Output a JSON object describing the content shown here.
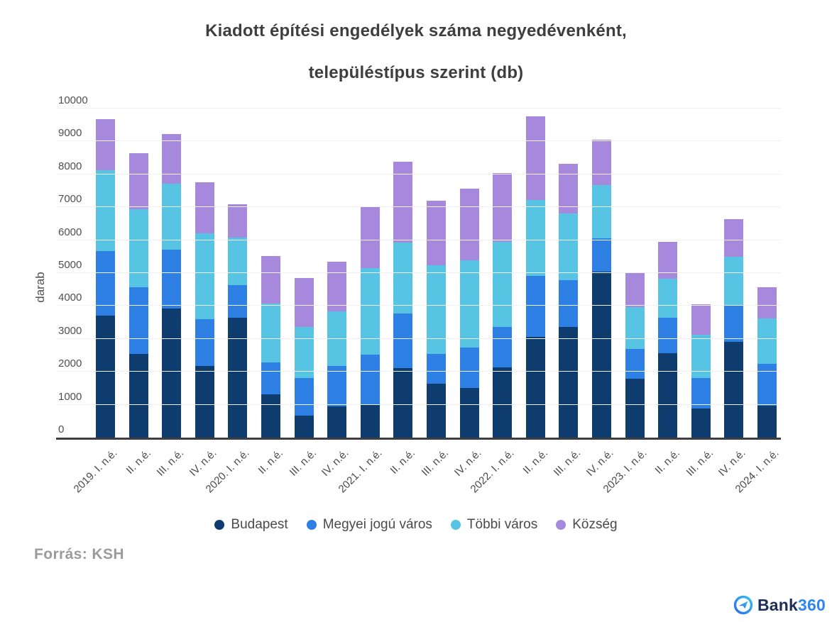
{
  "title": {
    "line1": "Kiadott építési engedélyek száma negyedévenként,",
    "line2": "településtípus szerint (db)"
  },
  "source": "Forrás: KSH",
  "logo": {
    "bank": "Bank",
    "num": "360"
  },
  "chart_data": {
    "type": "bar",
    "stacked": true,
    "title": "Kiadott építési engedélyek száma negyedévenként, településtípus szerint (db)",
    "xlabel": "",
    "ylabel": "darab",
    "ylim": [
      0,
      10000
    ],
    "yticks": [
      0,
      1000,
      2000,
      3000,
      4000,
      5000,
      6000,
      7000,
      8000,
      9000,
      10000
    ],
    "grid": true,
    "legend_position": "bottom",
    "categories": [
      "2019. I. n.é.",
      "II. n.é.",
      "III. n.é.",
      "IV. n.é.",
      "2020. I. n.é.",
      "II. n.é.",
      "III. n.é.",
      "IV. n.é.",
      "2021. I. n.é.",
      "II. n.é.",
      "III. n.é.",
      "IV. n.é.",
      "2022. I. n.é.",
      "II. n.é.",
      "III. n.é.",
      "IV. n.é.",
      "2023. I. n.é.",
      "II. n.é.",
      "III. n.é.",
      "IV. n.é.",
      "2024. I. n.é."
    ],
    "series": [
      {
        "name": "Budapest",
        "color": "#0e3c6e",
        "values": [
          3700,
          2540,
          3930,
          2170,
          3650,
          1310,
          660,
          950,
          1000,
          2110,
          1630,
          1500,
          2130,
          3060,
          3360,
          5040,
          1790,
          2560,
          880,
          2915,
          970
        ]
      },
      {
        "name": "Megyei jogú város",
        "color": "#2f80e4",
        "values": [
          1970,
          2020,
          1790,
          1430,
          990,
          970,
          1150,
          1220,
          1525,
          1655,
          915,
          1240,
          1240,
          1860,
          1420,
          1020,
          915,
          1085,
          930,
          1105,
          1265
        ]
      },
      {
        "name": "Többi város",
        "color": "#57c4e4",
        "values": [
          2450,
          2380,
          1990,
          2610,
          1430,
          1790,
          1550,
          1660,
          2630,
          2160,
          2685,
          2650,
          2570,
          2290,
          2025,
          1620,
          1270,
          1180,
          1320,
          1480,
          1395
        ]
      },
      {
        "name": "Község",
        "color": "#a689dc",
        "values": [
          1560,
          1700,
          1520,
          1560,
          1020,
          1440,
          1490,
          1520,
          1845,
          2455,
          1965,
          2180,
          2110,
          2560,
          1505,
          1380,
          1050,
          1130,
          930,
          1145,
          940
        ]
      }
    ]
  }
}
